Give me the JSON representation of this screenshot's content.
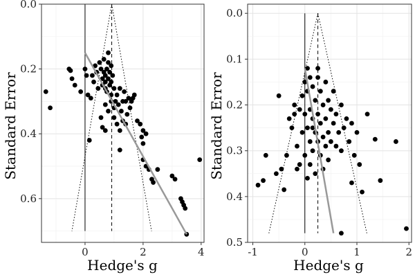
{
  "chart_data": [
    {
      "type": "scatter",
      "panel": "left",
      "title": "",
      "xlabel": "Hedge's g",
      "ylabel": "Standard Error",
      "xlim": [
        -1.5,
        4.1
      ],
      "ylim": [
        0,
        0.735
      ],
      "y_reversed": true,
      "x_ticks": [
        0,
        2,
        4
      ],
      "x_tick_labels": [
        "0",
        "2",
        "4"
      ],
      "y_ticks": [
        0.0,
        0.2,
        0.4,
        0.6
      ],
      "y_tick_labels": [
        "0.0",
        "0.2",
        "0.4",
        "0.6"
      ],
      "grid": true,
      "legend": "none",
      "points_color": "#000000",
      "zero_line_x": 0,
      "pooled_estimate_x": 0.92,
      "funnel_se_max": 0.7,
      "regression_line": [
        {
          "x": 0.0,
          "se": 0.15
        },
        {
          "x": 3.5,
          "se": 0.71
        }
      ],
      "regression_color": "#999999",
      "points": [
        [
          -1.35,
          0.27
        ],
        [
          -1.2,
          0.32
        ],
        [
          -0.55,
          0.2
        ],
        [
          -0.5,
          0.205
        ],
        [
          -0.45,
          0.23
        ],
        [
          -0.35,
          0.25
        ],
        [
          -0.15,
          0.27
        ],
        [
          0.0,
          0.2
        ],
        [
          0.05,
          0.22
        ],
        [
          0.1,
          0.28
        ],
        [
          0.15,
          0.42
        ],
        [
          0.2,
          0.29
        ],
        [
          0.25,
          0.22
        ],
        [
          0.3,
          0.24
        ],
        [
          0.35,
          0.19
        ],
        [
          0.4,
          0.21
        ],
        [
          0.45,
          0.26
        ],
        [
          0.5,
          0.18
        ],
        [
          0.55,
          0.2
        ],
        [
          0.6,
          0.23
        ],
        [
          0.6,
          0.25
        ],
        [
          0.65,
          0.17
        ],
        [
          0.65,
          0.21
        ],
        [
          0.7,
          0.22
        ],
        [
          0.7,
          0.24
        ],
        [
          0.7,
          0.26
        ],
        [
          0.75,
          0.2
        ],
        [
          0.75,
          0.27
        ],
        [
          0.8,
          0.15
        ],
        [
          0.8,
          0.18
        ],
        [
          0.8,
          0.23
        ],
        [
          0.85,
          0.21
        ],
        [
          0.85,
          0.25
        ],
        [
          0.9,
          0.19
        ],
        [
          0.9,
          0.24
        ],
        [
          0.9,
          0.28
        ],
        [
          0.95,
          0.22
        ],
        [
          1.0,
          0.26
        ],
        [
          0.7,
          0.31
        ],
        [
          0.8,
          0.33
        ],
        [
          0.9,
          0.3
        ],
        [
          1.0,
          0.32
        ],
        [
          1.05,
          0.3
        ],
        [
          1.1,
          0.28
        ],
        [
          1.15,
          0.31
        ],
        [
          1.2,
          0.26
        ],
        [
          1.25,
          0.33
        ],
        [
          1.3,
          0.3
        ],
        [
          1.35,
          0.27
        ],
        [
          1.4,
          0.3
        ],
        [
          1.45,
          0.34
        ],
        [
          1.5,
          0.29
        ],
        [
          1.55,
          0.32
        ],
        [
          1.6,
          0.3
        ],
        [
          1.65,
          0.29
        ],
        [
          1.7,
          0.28
        ],
        [
          1.0,
          0.35
        ],
        [
          0.55,
          0.35
        ],
        [
          0.6,
          0.38
        ],
        [
          0.7,
          0.39
        ],
        [
          1.1,
          0.37
        ],
        [
          1.2,
          0.39
        ],
        [
          1.3,
          0.36
        ],
        [
          1.4,
          0.37
        ],
        [
          1.8,
          0.36
        ],
        [
          1.9,
          0.37
        ],
        [
          2.0,
          0.39
        ],
        [
          1.95,
          0.41
        ],
        [
          2.1,
          0.4
        ],
        [
          2.0,
          0.43
        ],
        [
          1.2,
          0.45
        ],
        [
          2.0,
          0.48
        ],
        [
          2.1,
          0.5
        ],
        [
          2.2,
          0.51
        ],
        [
          2.3,
          0.54
        ],
        [
          2.35,
          0.55
        ],
        [
          2.5,
          0.51
        ],
        [
          3.0,
          0.53
        ],
        [
          3.1,
          0.54
        ],
        [
          3.3,
          0.6
        ],
        [
          3.35,
          0.61
        ],
        [
          3.4,
          0.62
        ],
        [
          3.45,
          0.63
        ],
        [
          3.5,
          0.71
        ],
        [
          3.95,
          0.48
        ]
      ]
    },
    {
      "type": "scatter",
      "panel": "right",
      "title": "",
      "xlabel": "Hedge's g",
      "ylabel": "Standard Error",
      "xlim": [
        -1.1,
        2.05
      ],
      "ylim": [
        -0.02,
        0.5
      ],
      "y_reversed": true,
      "x_ticks": [
        -1,
        0,
        1,
        2
      ],
      "x_tick_labels": [
        "-1",
        "0",
        "1",
        "2"
      ],
      "y_ticks": [
        0.0,
        0.1,
        0.2,
        0.3,
        0.4,
        0.5
      ],
      "y_tick_labels": [
        "0.0",
        "0.1",
        "0.2",
        "0.3",
        "0.4",
        "0.5"
      ],
      "grid": true,
      "legend": "none",
      "points_color": "#000000",
      "zero_line_x": 0,
      "pooled_estimate_x": 0.25,
      "funnel_se_max": 0.48,
      "regression_line": [
        {
          "x": 0.0,
          "se": 0.12
        },
        {
          "x": 0.55,
          "se": 0.48
        }
      ],
      "regression_color": "#999999",
      "points": [
        [
          -0.9,
          0.375
        ],
        [
          -0.8,
          0.365
        ],
        [
          -0.75,
          0.31
        ],
        [
          -0.55,
          0.35
        ],
        [
          -0.5,
          0.18
        ],
        [
          -0.45,
          0.34
        ],
        [
          -0.4,
          0.385
        ],
        [
          -0.35,
          0.31
        ],
        [
          -0.3,
          0.23
        ],
        [
          -0.25,
          0.25
        ],
        [
          -0.2,
          0.2
        ],
        [
          -0.15,
          0.29
        ],
        [
          -0.15,
          0.34
        ],
        [
          -0.1,
          0.21
        ],
        [
          -0.1,
          0.33
        ],
        [
          -0.05,
          0.18
        ],
        [
          -0.05,
          0.26
        ],
        [
          0.0,
          0.15
        ],
        [
          0.0,
          0.22
        ],
        [
          0.0,
          0.31
        ],
        [
          0.05,
          0.12
        ],
        [
          0.05,
          0.17
        ],
        [
          0.05,
          0.25
        ],
        [
          0.05,
          0.36
        ],
        [
          0.1,
          0.14
        ],
        [
          0.1,
          0.21
        ],
        [
          0.1,
          0.28
        ],
        [
          0.1,
          0.33
        ],
        [
          0.15,
          0.16
        ],
        [
          0.15,
          0.23
        ],
        [
          0.15,
          0.3
        ],
        [
          0.2,
          0.19
        ],
        [
          0.2,
          0.26
        ],
        [
          0.2,
          0.35
        ],
        [
          0.25,
          0.14
        ],
        [
          0.25,
          0.22
        ],
        [
          0.25,
          0.28
        ],
        [
          0.3,
          0.17
        ],
        [
          0.3,
          0.24
        ],
        [
          0.3,
          0.31
        ],
        [
          0.35,
          0.2
        ],
        [
          0.35,
          0.27
        ],
        [
          0.35,
          0.34
        ],
        [
          0.4,
          0.15
        ],
        [
          0.4,
          0.23
        ],
        [
          0.4,
          0.29
        ],
        [
          0.45,
          0.19
        ],
        [
          0.45,
          0.26
        ],
        [
          0.45,
          0.32
        ],
        [
          0.5,
          0.21
        ],
        [
          0.5,
          0.28
        ],
        [
          0.55,
          0.17
        ],
        [
          0.55,
          0.24
        ],
        [
          0.6,
          0.22
        ],
        [
          0.6,
          0.29
        ],
        [
          0.65,
          0.26
        ],
        [
          0.7,
          0.2
        ],
        [
          0.7,
          0.3
        ],
        [
          0.75,
          0.25
        ],
        [
          0.8,
          0.23
        ],
        [
          0.85,
          0.28
        ],
        [
          0.9,
          0.24
        ],
        [
          0.95,
          0.31
        ],
        [
          1.0,
          0.26
        ],
        [
          1.05,
          0.33
        ],
        [
          0.9,
          0.37
        ],
        [
          1.1,
          0.39
        ],
        [
          1.2,
          0.22
        ],
        [
          1.35,
          0.275
        ],
        [
          1.45,
          0.365
        ],
        [
          1.75,
          0.28
        ],
        [
          1.95,
          0.47
        ],
        [
          0.7,
          0.48
        ],
        [
          0.25,
          0.12
        ],
        [
          -0.2,
          0.22
        ],
        [
          0.15,
          0.25
        ]
      ]
    }
  ]
}
